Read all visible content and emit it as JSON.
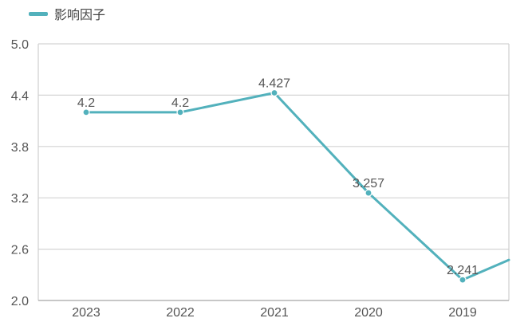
{
  "chart_data": {
    "type": "line",
    "categories": [
      "2023",
      "2022",
      "2021",
      "2020",
      "2019"
    ],
    "series": [
      {
        "name": "影响因子",
        "values": [
          4.2,
          4.2,
          4.427,
          3.257,
          2.241
        ],
        "color": "#52b1bc"
      }
    ],
    "data_labels": [
      "4.2",
      "4.2",
      "4.427",
      "3.257",
      "2.241"
    ],
    "ylim": [
      2.0,
      5.0
    ],
    "yticks": [
      "2.0",
      "2.6",
      "3.2",
      "3.8",
      "4.4",
      "5.0"
    ],
    "grid": true,
    "legend_position": "top-left"
  }
}
